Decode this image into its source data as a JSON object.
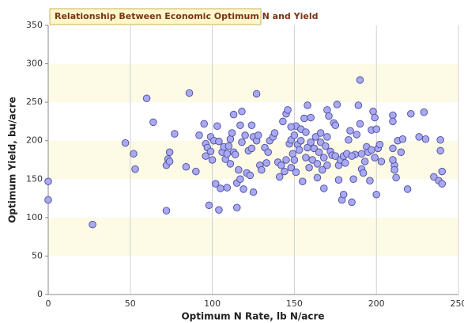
{
  "chart_data": {
    "type": "scatter",
    "title": "Relationship Between Economic Optimum N and Yield",
    "xlabel": "Optimum N Rate, lb N/acre",
    "ylabel": "Optimum Yield, bu/acre",
    "xlim": [
      0,
      250
    ],
    "xticks": [
      0,
      50,
      100,
      150,
      200,
      250
    ],
    "ylim": [
      0,
      350
    ],
    "yticks": [
      0,
      50,
      100,
      150,
      200,
      250,
      300,
      350
    ],
    "color": "#a9a9f2",
    "edge_color": "#4b4b9e",
    "grid": true,
    "x": [
      0,
      0,
      27,
      47,
      52,
      53,
      60,
      64,
      72,
      72,
      73,
      74,
      74,
      77,
      84,
      86,
      90,
      92,
      95,
      96,
      96,
      97,
      98,
      99,
      99,
      100,
      101,
      102,
      103,
      104,
      104,
      105,
      106,
      107,
      108,
      109,
      109,
      110,
      111,
      111,
      112,
      113,
      113,
      114,
      115,
      115,
      116,
      117,
      117,
      118,
      118,
      119,
      120,
      121,
      122,
      123,
      124,
      124,
      125,
      125,
      127,
      127,
      128,
      129,
      130,
      132,
      133,
      134,
      135,
      137,
      138,
      140,
      141,
      142,
      143,
      144,
      145,
      145,
      146,
      147,
      148,
      148,
      149,
      150,
      151,
      151,
      152,
      153,
      154,
      154,
      155,
      156,
      157,
      157,
      158,
      158,
      159,
      160,
      161,
      162,
      163,
      164,
      164,
      165,
      166,
      166,
      167,
      168,
      168,
      169,
      170,
      170,
      171,
      172,
      173,
      174,
      175,
      175,
      176,
      177,
      177,
      178,
      179,
      180,
      181,
      182,
      183,
      184,
      185,
      186,
      187,
      188,
      189,
      190,
      190,
      191,
      191,
      192,
      193,
      194,
      195,
      196,
      197,
      197,
      198,
      199,
      199,
      200,
      200,
      201,
      202,
      203,
      210,
      210,
      210,
      211,
      211,
      212,
      213,
      215,
      216,
      219,
      221,
      226,
      229,
      230,
      235,
      238,
      239,
      239,
      240,
      240,
      210,
      148,
      150,
      180,
      160,
      170,
      185
    ],
    "values": [
      147,
      123,
      91,
      197,
      183,
      163,
      255,
      224,
      109,
      168,
      176,
      185,
      173,
      209,
      166,
      262,
      160,
      207,
      222,
      180,
      196,
      191,
      116,
      186,
      205,
      175,
      200,
      144,
      219,
      110,
      199,
      138,
      185,
      192,
      176,
      139,
      183,
      193,
      202,
      170,
      210,
      234,
      185,
      182,
      145,
      113,
      162,
      150,
      220,
      238,
      198,
      137,
      207,
      158,
      187,
      155,
      220,
      190,
      133,
      205,
      261,
      200,
      207,
      168,
      162,
      191,
      171,
      185,
      200,
      205,
      210,
      172,
      153,
      168,
      225,
      160,
      235,
      175,
      240,
      196,
      201,
      165,
      183,
      207,
      219,
      159,
      195,
      188,
      215,
      200,
      147,
      229,
      178,
      211,
      246,
      191,
      165,
      198,
      175,
      190,
      205,
      152,
      170,
      185,
      210,
      198,
      162,
      138,
      178,
      193,
      240,
      168,
      232,
      186,
      181,
      223,
      180,
      220,
      247,
      168,
      149,
      175,
      123,
      180,
      171,
      183,
      201,
      213,
      120,
      150,
      182,
      208,
      246,
      279,
      222,
      183,
      163,
      158,
      173,
      192,
      185,
      148,
      188,
      214,
      238,
      230,
      178,
      215,
      130,
      190,
      195,
      173,
      233,
      225,
      190,
      168,
      162,
      152,
      200,
      185,
      202,
      137,
      235,
      205,
      237,
      202,
      153,
      148,
      201,
      187,
      160,
      144,
      175,
      218,
      175,
      130,
      230,
      205,
      180
    ]
  }
}
